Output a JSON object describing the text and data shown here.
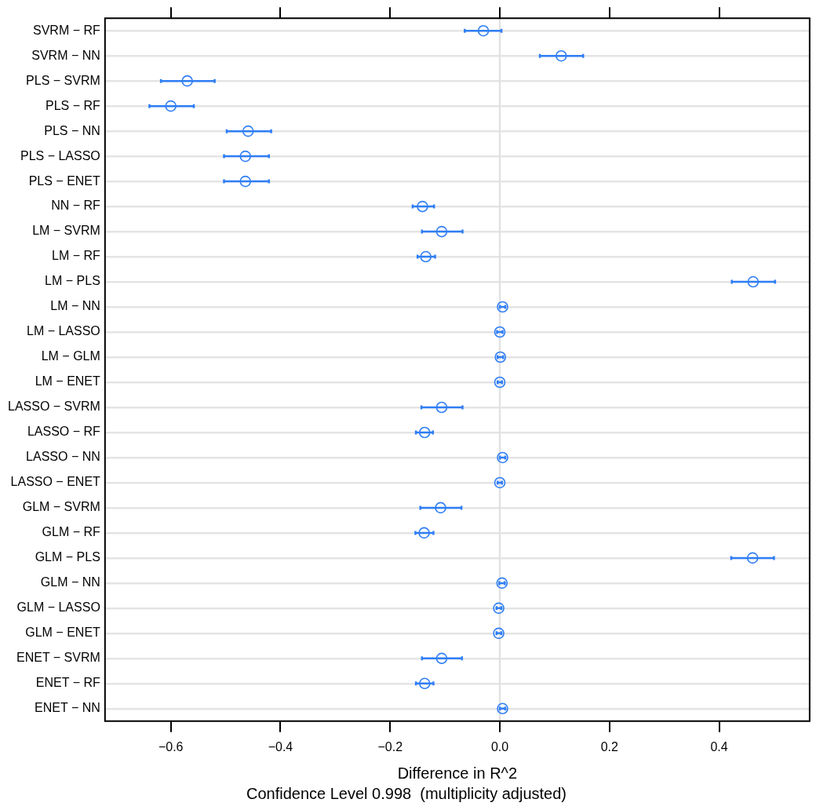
{
  "chart_data": {
    "type": "scatter",
    "orientation": "horizontal",
    "xlabel": "Difference in R^2",
    "annotations": [
      "Confidence Level 0.998  (multiplicity adjusted)"
    ],
    "categories": [
      "SVRM − RF",
      "SVRM − NN",
      "PLS − SVRM",
      "PLS − RF",
      "PLS − NN",
      "PLS − LASSO",
      "PLS − ENET",
      "NN − RF",
      "LM − SVRM",
      "LM − RF",
      "LM − PLS",
      "LM − NN",
      "LM − LASSO",
      "LM − GLM",
      "LM − ENET",
      "LASSO − SVRM",
      "LASSO − RF",
      "LASSO − NN",
      "LASSO − ENET",
      "GLM − SVRM",
      "GLM − RF",
      "GLM − PLS",
      "GLM − NN",
      "GLM − LASSO",
      "GLM − ENET",
      "ENET − SVRM",
      "ENET − RF",
      "ENET − NN"
    ],
    "series": [
      {
        "color": "#2f7ef5",
        "values": [
          -0.03,
          0.112,
          -0.57,
          -0.6,
          -0.459,
          -0.464,
          -0.464,
          -0.141,
          -0.106,
          -0.135,
          0.462,
          0.005,
          0.0,
          0.001,
          0.0,
          -0.106,
          -0.137,
          0.005,
          0.0,
          -0.108,
          -0.138,
          0.461,
          0.004,
          -0.002,
          -0.002,
          -0.106,
          -0.137,
          0.005
        ],
        "errors": [
          [
            -0.064,
            0.003
          ],
          [
            0.073,
            0.152
          ],
          [
            -0.618,
            -0.52
          ],
          [
            -0.639,
            -0.558
          ],
          [
            -0.498,
            -0.417
          ],
          [
            -0.503,
            -0.421
          ],
          [
            -0.503,
            -0.421
          ],
          [
            -0.159,
            -0.12
          ],
          [
            -0.142,
            -0.068
          ],
          [
            -0.15,
            -0.118
          ],
          [
            0.423,
            0.502
          ],
          [
            0.0,
            0.01
          ],
          [
            -0.005,
            0.005
          ],
          [
            -0.004,
            0.006
          ],
          [
            -0.004,
            0.004
          ],
          [
            -0.143,
            -0.068
          ],
          [
            -0.153,
            -0.122
          ],
          [
            0.0,
            0.01
          ],
          [
            -0.004,
            0.004
          ],
          [
            -0.145,
            -0.07
          ],
          [
            -0.154,
            -0.121
          ],
          [
            0.422,
            0.5
          ],
          [
            -0.001,
            0.009
          ],
          [
            -0.006,
            0.003
          ],
          [
            -0.006,
            0.003
          ],
          [
            -0.142,
            -0.069
          ],
          [
            -0.153,
            -0.121
          ],
          [
            0.0,
            0.01
          ]
        ]
      }
    ],
    "xlim": [
      -0.72,
      0.565
    ],
    "xticks": [
      {
        "value": -0.6,
        "label": "−0.6"
      },
      {
        "value": -0.4,
        "label": "−0.4"
      },
      {
        "value": -0.2,
        "label": "−0.2"
      },
      {
        "value": 0,
        "label": "0.0"
      },
      0.2,
      0.4
    ],
    "ref_lines": [
      {
        "axis": "x",
        "value": 0,
        "color": "#e2e2e2"
      }
    ],
    "grid": "y",
    "marker": "circle",
    "legend": false
  }
}
